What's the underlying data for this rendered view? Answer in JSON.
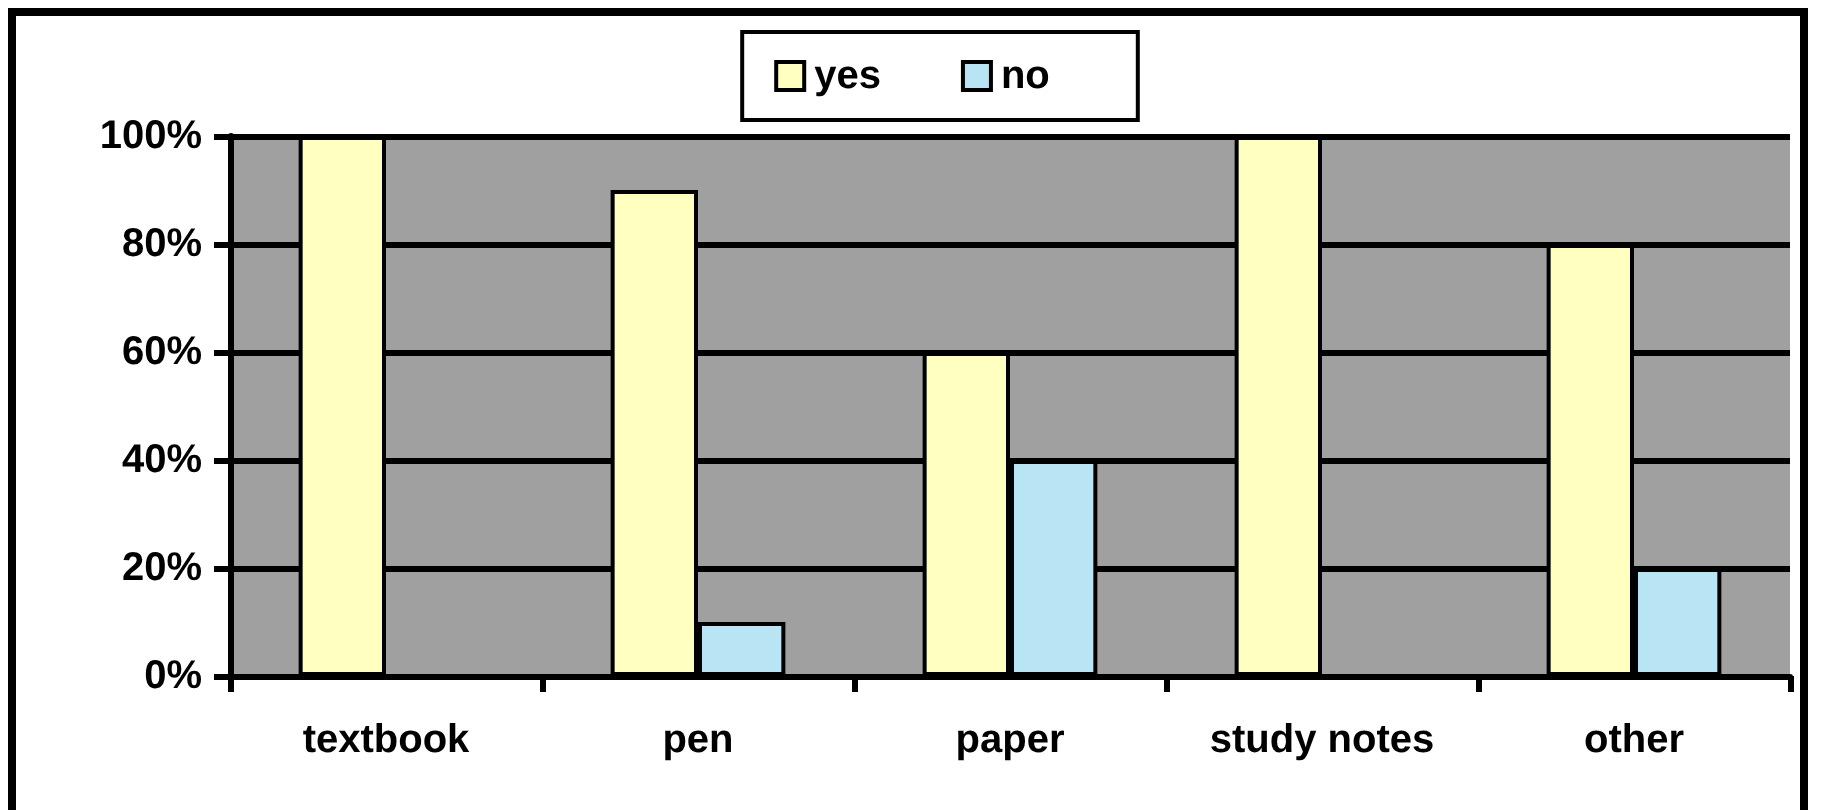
{
  "chart_data": {
    "type": "bar",
    "categories": [
      "textbook",
      "pen",
      "paper",
      "study notes",
      "other"
    ],
    "series": [
      {
        "name": "yes",
        "color": "#ffffc0",
        "values": [
          100,
          90,
          60,
          100,
          80
        ]
      },
      {
        "name": "no",
        "color": "#b8e4f4",
        "values": [
          0,
          10,
          40,
          0,
          20
        ]
      }
    ],
    "ylim": [
      0,
      100
    ],
    "yticks": [
      {
        "value": 0,
        "label": "0%"
      },
      {
        "value": 20,
        "label": "20%"
      },
      {
        "value": 40,
        "label": "40%"
      },
      {
        "value": 60,
        "label": "60%"
      },
      {
        "value": 80,
        "label": "80%"
      },
      {
        "value": 100,
        "label": "100%"
      }
    ],
    "grid": "y",
    "legend": "top"
  }
}
